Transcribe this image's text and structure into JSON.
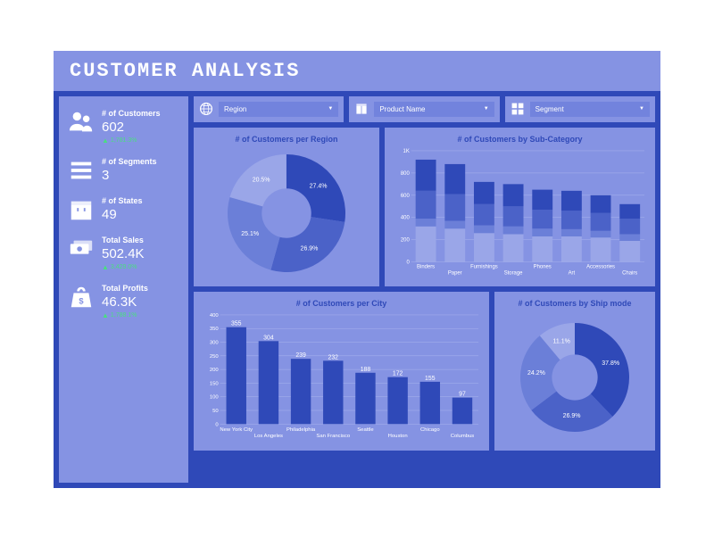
{
  "header": {
    "title": "CUSTOMER ANALYSIS"
  },
  "colors": {
    "frame": "#2f49b8",
    "panel": "#8593e3",
    "accent": "#7283dd",
    "text_light": "#ffffff",
    "delta_up": "#4ade80",
    "bar_dark": "#2f49b8",
    "bar_mid": "#4b62c8",
    "bar_light": "#6b7fd8",
    "grid": "#aab4ed",
    "donut_colors": [
      "#2f49b8",
      "#4b62c8",
      "#6b7fd8",
      "#9aa6e8"
    ]
  },
  "sidebar": {
    "metrics": [
      {
        "icon": "users",
        "label": "# of Customers",
        "value": "602",
        "delta": "1,781.3%",
        "dir": "up"
      },
      {
        "icon": "segments",
        "label": "# of Segments",
        "value": "3"
      },
      {
        "icon": "box",
        "label": "# of States",
        "value": "49"
      },
      {
        "icon": "cash",
        "label": "Total Sales",
        "value": "502.4K",
        "delta": "3,429.0%",
        "dir": "up"
      },
      {
        "icon": "bag",
        "label": "Total Profits",
        "value": "46.3K",
        "delta": "1,788.1%",
        "dir": "up"
      }
    ]
  },
  "filters": [
    {
      "icon": "globe",
      "label": "Region"
    },
    {
      "icon": "package",
      "label": "Product Name"
    },
    {
      "icon": "grid",
      "label": "Segment"
    }
  ],
  "region_chart": {
    "type": "donut",
    "title": "# of Customers per Region",
    "slices": [
      {
        "label": "27.4%",
        "value": 27.4,
        "color": "#2f49b8"
      },
      {
        "label": "26.9%",
        "value": 26.9,
        "color": "#4b62c8"
      },
      {
        "label": "25.1%",
        "value": 25.1,
        "color": "#6b7fd8"
      },
      {
        "label": "20.5%",
        "value": 20.5,
        "color": "#9aa6e8"
      }
    ],
    "inner_radius": 0.42,
    "outer_radius": 1.0
  },
  "subcat_chart": {
    "type": "stacked-bar",
    "title": "# of Customers by Sub-Category",
    "categories": [
      "Binders",
      "Paper",
      "Furnishings",
      "Storage",
      "Phones",
      "Art",
      "Accessories",
      "Chairs"
    ],
    "stacks": [
      [
        320,
        390,
        640,
        920
      ],
      [
        300,
        370,
        610,
        880
      ],
      [
        260,
        330,
        520,
        720
      ],
      [
        250,
        320,
        500,
        700
      ],
      [
        230,
        300,
        470,
        650
      ],
      [
        230,
        295,
        460,
        640
      ],
      [
        220,
        280,
        440,
        600
      ],
      [
        190,
        250,
        390,
        520
      ]
    ],
    "stack_colors": [
      "#2f49b8",
      "#4b62c8",
      "#6b7fd8",
      "#9aa6e8"
    ],
    "ylim": [
      0,
      1000
    ],
    "yticks": [
      0,
      200,
      400,
      600,
      800,
      1000
    ],
    "ytick_labels": [
      "0",
      "200",
      "400",
      "600",
      "800",
      "1K"
    ]
  },
  "city_chart": {
    "type": "bar",
    "title": "# of Customers per City",
    "categories": [
      "New York City",
      "Los Angeles",
      "Philadelphia",
      "San Francisco",
      "Seattle",
      "Houston",
      "Chicago",
      "Columbus"
    ],
    "values": [
      355,
      304,
      239,
      232,
      188,
      172,
      155,
      97
    ],
    "bar_color": "#2f49b8",
    "ylim": [
      0,
      400
    ],
    "yticks": [
      0,
      50,
      100,
      150,
      200,
      250,
      300,
      350,
      400
    ],
    "show_values": true
  },
  "ship_chart": {
    "type": "donut",
    "title": "# of Customers by Ship mode",
    "slices": [
      {
        "label": "37.8%",
        "value": 37.8,
        "color": "#2f49b8"
      },
      {
        "label": "26.9%",
        "value": 26.9,
        "color": "#4b62c8"
      },
      {
        "label": "24.2%",
        "value": 24.2,
        "color": "#6b7fd8"
      },
      {
        "label": "11.1%",
        "value": 11.1,
        "color": "#9aa6e8"
      }
    ],
    "inner_radius": 0.42,
    "outer_radius": 1.0
  }
}
